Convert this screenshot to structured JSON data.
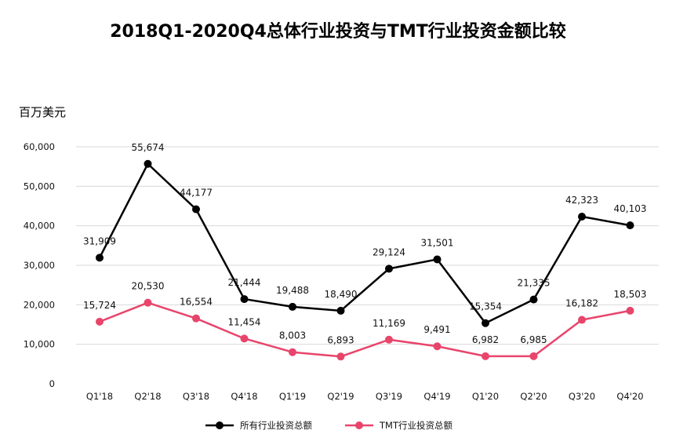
{
  "chart_data": {
    "type": "line",
    "title": "2018Q1-2020Q4总体行业投资与TMT行业投资金额比较",
    "ylabel": "百万美元",
    "xlabel": "",
    "categories": [
      "Q1'18",
      "Q2'18",
      "Q3'18",
      "Q4'18",
      "Q1'19",
      "Q2'19",
      "Q3'19",
      "Q4'19",
      "Q1'20",
      "Q2'20",
      "Q3'20",
      "Q4'20"
    ],
    "ylim": [
      0,
      60000
    ],
    "yticks": [
      0,
      10000,
      20000,
      30000,
      40000,
      50000,
      60000
    ],
    "ytick_labels": [
      "0",
      "10,000",
      "20,000",
      "30,000",
      "40,000",
      "50,000",
      "60,000"
    ],
    "grid": true,
    "legend_position": "bottom",
    "series": [
      {
        "name": "所有行业投资总额",
        "color": "#000000",
        "values": [
          31909,
          55674,
          44177,
          21444,
          19488,
          18490,
          29124,
          31501,
          15354,
          21335,
          42323,
          40103
        ],
        "labels": [
          "31,909",
          "55,674",
          "44,177",
          "21,444",
          "19,488",
          "18,490",
          "29,124",
          "31,501",
          "15,354",
          "21,335",
          "42,323",
          "40,103"
        ]
      },
      {
        "name": "TMT行业投资总额",
        "color": "#e8456b",
        "values": [
          15724,
          20530,
          16554,
          11454,
          8003,
          6893,
          11169,
          9491,
          6982,
          6985,
          16182,
          18503
        ],
        "labels": [
          "15,724",
          "20,530",
          "16,554",
          "11,454",
          "8,003",
          "6,893",
          "11,169",
          "9,491",
          "6,982",
          "6,985",
          "16,182",
          "18,503"
        ]
      }
    ]
  }
}
